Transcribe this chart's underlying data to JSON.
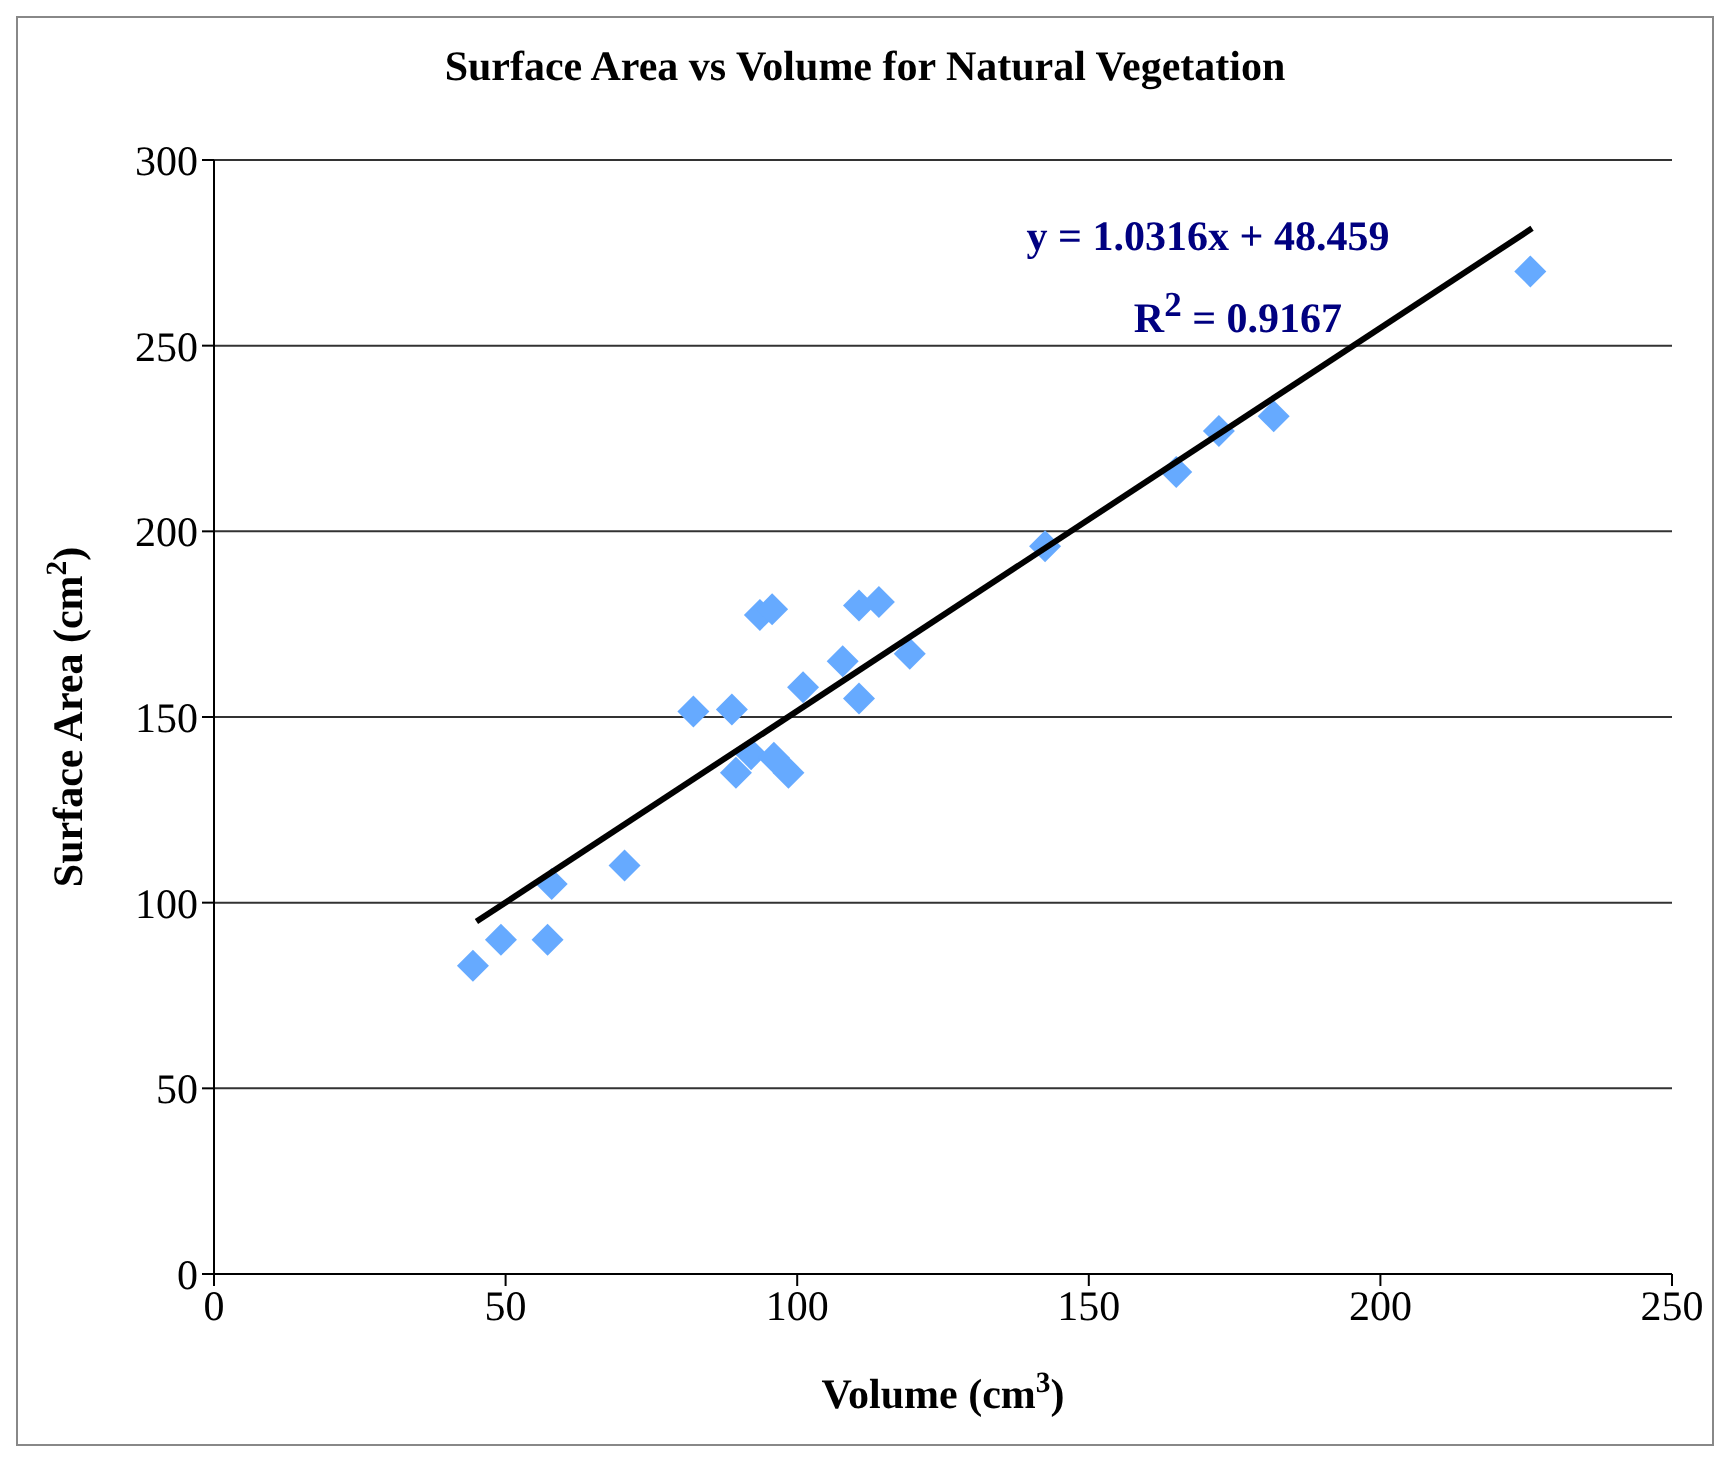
{
  "chart_data": {
    "type": "scatter",
    "title": "Surface Area vs Volume for Natural Vegetation",
    "xlabel": "Volume (cm$^{3}$)",
    "ylabel": "Surface Area (cm$^{2}$)",
    "annotations": [
      "y = 1.0316x + 48.459",
      "R$^{2}$ = 0.9167"
    ],
    "series": [
      {
        "color": "#66aaff",
        "marker": "diamond",
        "x": [
          44.4,
          49.2,
          57.2,
          57.9,
          70.4,
          82.2,
          88.8,
          89.5,
          92.1,
          96,
          98.5,
          93.6,
          95.7,
          101,
          107.8,
          110.6,
          110.6,
          114,
          119.3,
          142.5,
          165,
          172.3,
          181.7,
          225.7
        ],
        "values": [
          83,
          90,
          90,
          105,
          110,
          151.5,
          152,
          135,
          140,
          139,
          135,
          177.5,
          179,
          158,
          165,
          180,
          155,
          181,
          167,
          196,
          216,
          227,
          231,
          270
        ]
      },
      {
        "type": "line",
        "color": "#000000",
        "marker": "none",
        "x": [
          45,
          226
        ],
        "values": [
          94.9,
          281.6
        ]
      }
    ],
    "xlim": [
      0,
      250
    ],
    "xticks": [
      0,
      50,
      100,
      150,
      200,
      250
    ],
    "ylim": [
      0,
      300
    ],
    "yticks": [
      0,
      50,
      100,
      150,
      200,
      250,
      300
    ],
    "grid": "y"
  }
}
